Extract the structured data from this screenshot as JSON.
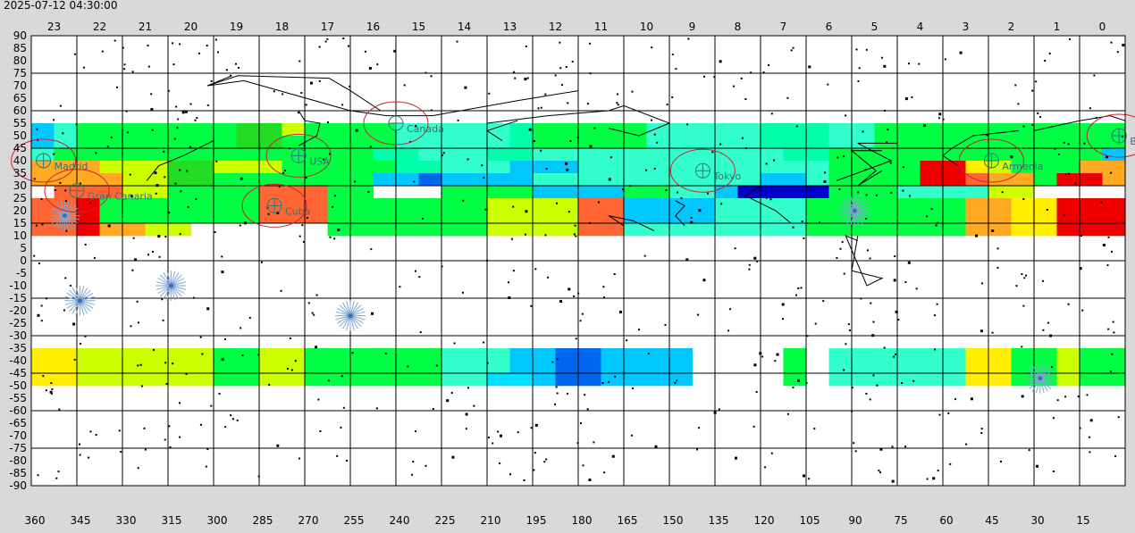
{
  "timestamp": "2025-07-12 04:30:00",
  "chart_data": {
    "type": "heatmap",
    "x_top_ticks": [
      "23",
      "22",
      "21",
      "20",
      "19",
      "18",
      "17",
      "16",
      "15",
      "14",
      "13",
      "12",
      "11",
      "10",
      "9",
      "8",
      "7",
      "6",
      "5",
      "4",
      "3",
      "2",
      "1",
      "0"
    ],
    "x_bottom_ticks": [
      "360",
      "345",
      "330",
      "315",
      "300",
      "285",
      "270",
      "255",
      "240",
      "225",
      "210",
      "195",
      "180",
      "165",
      "150",
      "135",
      "120",
      "105",
      "90",
      "75",
      "60",
      "45",
      "30",
      "15"
    ],
    "y_ticks": [
      "90",
      "85",
      "80",
      "75",
      "70",
      "65",
      "60",
      "55",
      "50",
      "45",
      "40",
      "35",
      "30",
      "25",
      "20",
      "15",
      "10",
      "5",
      "0",
      "-5",
      "-10",
      "-15",
      "-20",
      "-25",
      "-30",
      "-35",
      "-40",
      "-45",
      "-50",
      "-55",
      "-60",
      "-65",
      "-70",
      "-75",
      "-80",
      "-85",
      "-90"
    ],
    "x_range": [
      360,
      0
    ],
    "y_range": [
      -90,
      90
    ],
    "grid": true,
    "palette": [
      "#ffffff",
      "#00c8ff",
      "#00e0ff",
      "#33ffcc",
      "#00ffaa",
      "#00ff44",
      "#22dd22",
      "#88ee22",
      "#ccff00",
      "#ffee00",
      "#ffaa22",
      "#ff6633",
      "#ee0000",
      "#0066ee",
      "#0000cc"
    ],
    "band_rows": [
      {
        "lat": [
          55,
          60
        ],
        "cells": [
          0,
          0,
          0,
          0,
          0,
          0,
          0,
          0,
          0,
          0,
          0,
          0,
          0,
          0,
          0,
          0,
          0,
          0,
          0,
          0,
          0,
          0,
          0,
          0,
          0,
          0,
          0,
          0,
          0,
          0,
          0,
          0,
          0,
          0,
          0,
          0,
          0,
          0,
          0,
          0,
          0,
          0,
          0,
          0,
          0,
          0,
          0,
          0
        ]
      },
      {
        "lat": [
          50,
          55
        ],
        "cells": [
          1,
          3,
          5,
          5,
          5,
          5,
          5,
          5,
          5,
          6,
          6,
          8,
          5,
          5,
          5,
          5,
          3,
          3,
          3,
          3,
          3,
          4,
          5,
          5,
          5,
          5,
          5,
          3,
          3,
          3,
          3,
          3,
          4,
          4,
          4,
          3,
          3,
          5,
          5,
          5,
          5,
          5,
          5,
          5,
          5,
          5,
          5,
          5
        ]
      },
      {
        "lat": [
          45,
          50
        ],
        "cells": [
          1,
          3,
          5,
          5,
          5,
          5,
          5,
          5,
          5,
          6,
          6,
          5,
          5,
          5,
          5,
          5,
          3,
          3,
          3,
          3,
          3,
          4,
          5,
          5,
          5,
          5,
          5,
          3,
          3,
          3,
          3,
          3,
          4,
          4,
          4,
          3,
          3,
          5,
          5,
          5,
          5,
          5,
          5,
          5,
          5,
          5,
          5,
          5
        ]
      },
      {
        "lat": [
          40,
          45
        ],
        "cells": [
          3,
          5,
          5,
          5,
          5,
          5,
          5,
          5,
          5,
          5,
          5,
          5,
          5,
          5,
          5,
          4,
          4,
          3,
          3,
          3,
          4,
          4,
          3,
          3,
          3,
          3,
          3,
          3,
          3,
          3,
          3,
          3,
          3,
          4,
          4,
          5,
          5,
          5,
          5,
          5,
          5,
          5,
          5,
          5,
          5,
          5,
          5,
          1
        ]
      },
      {
        "lat": [
          35,
          40
        ],
        "cells": [
          10,
          10,
          10,
          8,
          8,
          8,
          6,
          6,
          8,
          8,
          8,
          5,
          5,
          5,
          5,
          5,
          4,
          4,
          3,
          3,
          3,
          1,
          1,
          1,
          3,
          3,
          3,
          3,
          3,
          3,
          3,
          3,
          3,
          3,
          3,
          5,
          5,
          5,
          5,
          12,
          12,
          9,
          8,
          5,
          5,
          5,
          10,
          10
        ]
      },
      {
        "lat": [
          30,
          35
        ],
        "cells": [
          10,
          10,
          10,
          10,
          8,
          8,
          6,
          6,
          5,
          5,
          5,
          5,
          5,
          5,
          5,
          1,
          1,
          13,
          1,
          1,
          1,
          1,
          3,
          3,
          3,
          3,
          3,
          3,
          3,
          3,
          3,
          3,
          1,
          1,
          3,
          5,
          5,
          5,
          5,
          12,
          12,
          11,
          10,
          10,
          5,
          12,
          12,
          10
        ]
      },
      {
        "lat": [
          25,
          30
        ],
        "cells": [
          0,
          11,
          11,
          11,
          8,
          8,
          5,
          5,
          5,
          5,
          11,
          11,
          11,
          5,
          5,
          0,
          0,
          0,
          5,
          5,
          5,
          5,
          1,
          1,
          1,
          1,
          5,
          5,
          3,
          3,
          1,
          14,
          14,
          14,
          14,
          5,
          5,
          5,
          3,
          3,
          3,
          3,
          8,
          8,
          0,
          0,
          0,
          0
        ]
      },
      {
        "lat": [
          20,
          25
        ],
        "cells": [
          11,
          11,
          12,
          5,
          5,
          5,
          5,
          5,
          5,
          5,
          11,
          11,
          11,
          5,
          5,
          5,
          5,
          5,
          5,
          5,
          8,
          8,
          8,
          8,
          11,
          11,
          1,
          1,
          1,
          1,
          3,
          3,
          3,
          3,
          5,
          5,
          5,
          5,
          5,
          5,
          5,
          10,
          10,
          9,
          9,
          12,
          12,
          12
        ]
      },
      {
        "lat": [
          15,
          20
        ],
        "cells": [
          11,
          11,
          12,
          5,
          5,
          5,
          5,
          5,
          5,
          5,
          11,
          11,
          11,
          5,
          5,
          5,
          5,
          5,
          5,
          5,
          8,
          8,
          8,
          8,
          11,
          11,
          1,
          1,
          1,
          1,
          3,
          3,
          3,
          3,
          5,
          5,
          5,
          5,
          5,
          5,
          5,
          10,
          10,
          9,
          9,
          12,
          12,
          12
        ]
      },
      {
        "lat": [
          10,
          15
        ],
        "cells": [
          11,
          11,
          12,
          10,
          10,
          8,
          8,
          0,
          0,
          0,
          0,
          0,
          0,
          5,
          5,
          5,
          5,
          5,
          5,
          5,
          8,
          8,
          8,
          8,
          11,
          11,
          3,
          3,
          3,
          3,
          3,
          3,
          3,
          3,
          5,
          5,
          5,
          5,
          5,
          5,
          5,
          10,
          10,
          9,
          9,
          12,
          12,
          12
        ]
      },
      {
        "lat": [
          -40,
          -35
        ],
        "cells": [
          9,
          9,
          8,
          8,
          8,
          8,
          8,
          8,
          5,
          5,
          8,
          8,
          5,
          5,
          5,
          5,
          5,
          5,
          3,
          3,
          3,
          1,
          1,
          13,
          13,
          1,
          1,
          1,
          1,
          0,
          0,
          0,
          0,
          5,
          0,
          3,
          3,
          3,
          3,
          3,
          3,
          9,
          9,
          5,
          5,
          8,
          5,
          5
        ]
      },
      {
        "lat": [
          -45,
          -40
        ],
        "cells": [
          9,
          9,
          8,
          8,
          8,
          8,
          8,
          8,
          5,
          5,
          8,
          8,
          5,
          5,
          5,
          5,
          5,
          5,
          3,
          3,
          3,
          1,
          1,
          13,
          13,
          1,
          1,
          1,
          1,
          0,
          0,
          0,
          0,
          5,
          0,
          3,
          3,
          3,
          3,
          3,
          3,
          9,
          9,
          5,
          5,
          8,
          5,
          5
        ]
      },
      {
        "lat": [
          -50,
          -45
        ],
        "cells": [
          9,
          9,
          8,
          8,
          8,
          8,
          8,
          8,
          5,
          5,
          8,
          8,
          5,
          5,
          5,
          5,
          5,
          5,
          3,
          3,
          2,
          2,
          1,
          13,
          13,
          1,
          1,
          1,
          1,
          0,
          0,
          0,
          0,
          5,
          0,
          3,
          3,
          3,
          3,
          3,
          3,
          9,
          9,
          5,
          5,
          8,
          5,
          5
        ]
      }
    ],
    "locations": [
      {
        "name": "Canada",
        "lon": 240,
        "lat": 55
      },
      {
        "name": "USA",
        "lon": 272,
        "lat": 42
      },
      {
        "name": "Madrid",
        "lon": 356,
        "lat": 40
      },
      {
        "name": "Gran Canaria",
        "lon": 345,
        "lat": 28
      },
      {
        "name": "Cuba",
        "lon": 280,
        "lat": 22
      },
      {
        "name": "Tokyo",
        "lon": 139,
        "lat": 36
      },
      {
        "name": "Armenia",
        "lon": 44,
        "lat": 40
      },
      {
        "name": "B",
        "lon": 2,
        "lat": 50
      }
    ],
    "constellation_lines": [
      {
        "points": [
          [
            294,
            74
          ],
          [
            302,
            70
          ],
          [
            290,
            72
          ],
          [
            255,
            60
          ],
          [
            243,
            58
          ],
          [
            228,
            58
          ],
          [
            200,
            64
          ],
          [
            180,
            68
          ]
        ]
      },
      {
        "points": [
          [
            302,
            70
          ],
          [
            292,
            74
          ],
          [
            262,
            73
          ],
          [
            255,
            68
          ],
          [
            245,
            60
          ]
        ]
      },
      {
        "points": [
          [
            272,
            60
          ],
          [
            270,
            56
          ],
          [
            265,
            55
          ],
          [
            266,
            50
          ],
          [
            272,
            46
          ]
        ]
      },
      {
        "points": [
          [
            300,
            48
          ],
          [
            310,
            42
          ],
          [
            318,
            38
          ],
          [
            322,
            32
          ]
        ]
      },
      {
        "points": [
          [
            210,
            55
          ],
          [
            190,
            58
          ],
          [
            170,
            60
          ],
          [
            165,
            62
          ],
          [
            150,
            55
          ],
          [
            160,
            50
          ],
          [
            170,
            53
          ]
        ]
      },
      {
        "points": [
          [
            205,
            48
          ],
          [
            210,
            52
          ],
          [
            200,
            56
          ]
        ]
      },
      {
        "points": [
          [
            80,
            44
          ],
          [
            90,
            44
          ],
          [
            82,
            36
          ],
          [
            88,
            30
          ],
          [
            80,
            36
          ]
        ]
      },
      {
        "points": [
          [
            75,
            47
          ],
          [
            88,
            47
          ],
          [
            77,
            40
          ],
          [
            95,
            32
          ]
        ]
      },
      {
        "points": [
          [
            35,
            52
          ],
          [
            50,
            50
          ],
          [
            57,
            45
          ],
          [
            60,
            42
          ],
          [
            55,
            38
          ]
        ]
      },
      {
        "points": [
          [
            30,
            52
          ],
          [
            15,
            56
          ],
          [
            5,
            58
          ],
          [
            0,
            56
          ]
        ]
      },
      {
        "points": [
          [
            155,
            12
          ],
          [
            162,
            16
          ],
          [
            170,
            18
          ],
          [
            165,
            14
          ]
        ]
      },
      {
        "points": [
          [
            145,
            14
          ],
          [
            148,
            18
          ],
          [
            145,
            22
          ],
          [
            148,
            24
          ]
        ]
      },
      {
        "points": [
          [
            88,
            8
          ],
          [
            92,
            10
          ],
          [
            85,
            -10
          ],
          [
            80,
            -7
          ],
          [
            90,
            -4
          ],
          [
            88,
            10
          ]
        ]
      },
      {
        "points": [
          [
            110,
            15
          ],
          [
            115,
            20
          ],
          [
            125,
            26
          ],
          [
            120,
            30
          ]
        ]
      }
    ],
    "bright_stars": [
      {
        "lon": 344,
        "lat": -16
      },
      {
        "lon": 349,
        "lat": 18
      },
      {
        "lon": 314,
        "lat": -10
      },
      {
        "lon": 255,
        "lat": -22
      },
      {
        "lon": 89,
        "lat": 20
      },
      {
        "lon": 28,
        "lat": -47
      }
    ],
    "seed": 7
  }
}
